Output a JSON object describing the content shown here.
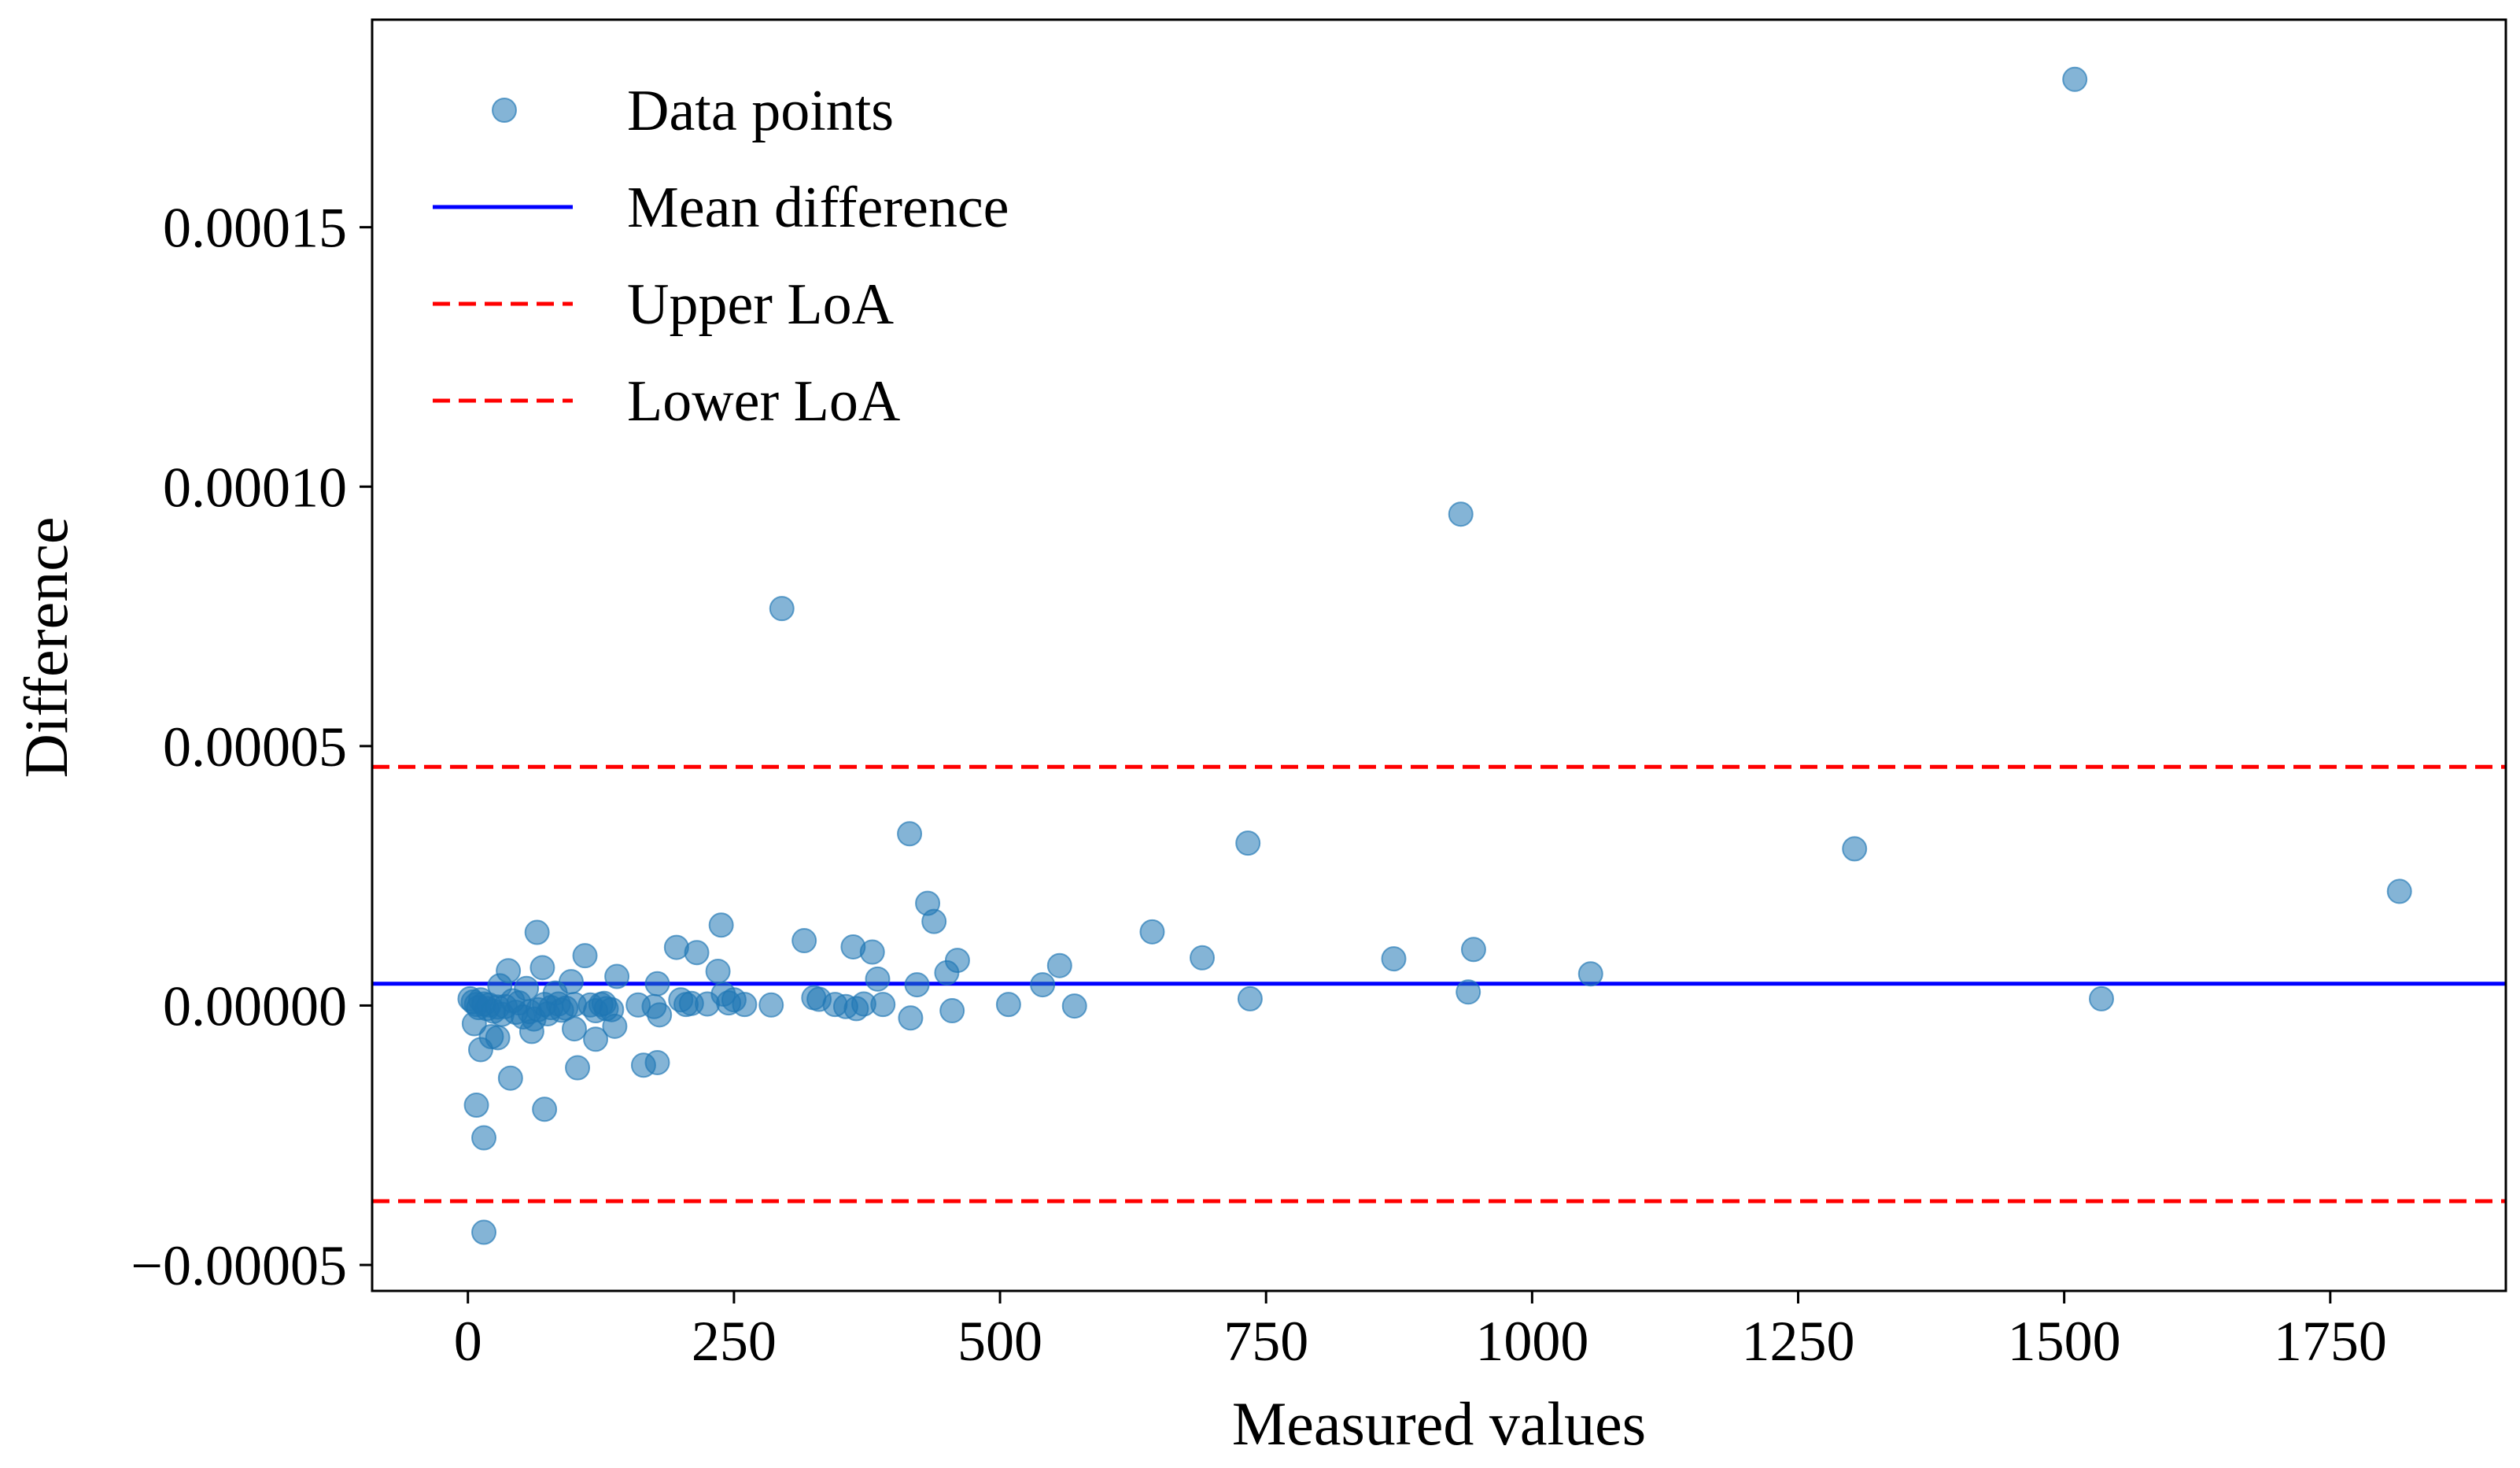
{
  "chart_data": {
    "type": "scatter",
    "xlabel": "Measured values",
    "ylabel": "Difference",
    "xlim": [
      -90,
      1915
    ],
    "ylim": [
      -5.5e-05,
      0.00019
    ],
    "x_ticks": [
      {
        "value": 0,
        "label": "0"
      },
      {
        "value": 250,
        "label": "250"
      },
      {
        "value": 500,
        "label": "500"
      },
      {
        "value": 750,
        "label": "750"
      },
      {
        "value": 1000,
        "label": "1000"
      },
      {
        "value": 1250,
        "label": "1250"
      },
      {
        "value": 1500,
        "label": "1500"
      },
      {
        "value": 1750,
        "label": "1750"
      }
    ],
    "y_ticks": [
      {
        "value": -5e-05,
        "label": "−0.00005"
      },
      {
        "value": 0.0,
        "label": "0.00000"
      },
      {
        "value": 5e-05,
        "label": "0.00005"
      },
      {
        "value": 0.0001,
        "label": "0.00010"
      },
      {
        "value": 0.00015,
        "label": "0.00015"
      }
    ],
    "legend": {
      "position": "upper-left",
      "entries": [
        {
          "label": "Data points",
          "kind": "marker",
          "color": "#1f77b4"
        },
        {
          "label": "Mean difference",
          "kind": "solid",
          "color": "#0000ff"
        },
        {
          "label": "Upper LoA",
          "kind": "dashed",
          "color": "#ff0000"
        },
        {
          "label": "Lower LoA",
          "kind": "dashed",
          "color": "#ff0000"
        }
      ]
    },
    "lines": [
      {
        "name": "Mean difference",
        "y": 4.2e-06,
        "color": "#0000ff",
        "style": "solid"
      },
      {
        "name": "Upper LoA",
        "y": 4.6e-05,
        "color": "#ff0000",
        "style": "dashed"
      },
      {
        "name": "Lower LoA",
        "y": -3.77e-05,
        "color": "#ff0000",
        "style": "dashed"
      }
    ],
    "series": [
      {
        "name": "Data points",
        "color": "#1f77b4",
        "alpha": 0.55,
        "points": [
          [
            1510,
            0.0001785
          ],
          [
            933,
            9.47e-05
          ],
          [
            295,
            7.65e-05
          ],
          [
            415,
            3.31e-05
          ],
          [
            733,
            3.13e-05
          ],
          [
            1303,
            3.02e-05
          ],
          [
            1815,
            2.2e-05
          ],
          [
            432,
            1.97e-05
          ],
          [
            438,
            1.62e-05
          ],
          [
            238,
            1.55e-05
          ],
          [
            65,
            1.41e-05
          ],
          [
            643,
            1.42e-05
          ],
          [
            316,
            1.25e-05
          ],
          [
            196,
            1.12e-05
          ],
          [
            362,
            1.13e-05
          ],
          [
            945,
            1.08e-05
          ],
          [
            215,
            1.02e-05
          ],
          [
            380,
            1.03e-05
          ],
          [
            110,
            9.6e-06
          ],
          [
            690,
            9.2e-06
          ],
          [
            870,
            9e-06
          ],
          [
            460,
            8.7e-06
          ],
          [
            556,
            7.7e-06
          ],
          [
            70,
            7.3e-06
          ],
          [
            38,
            6.7e-06
          ],
          [
            235,
            6.6e-06
          ],
          [
            450,
            6.3e-06
          ],
          [
            1055,
            6.1e-06
          ],
          [
            140,
            5.6e-06
          ],
          [
            385,
            5.1e-06
          ],
          [
            97,
            4.6e-06
          ],
          [
            178,
            4.2e-06
          ],
          [
            540,
            4e-06
          ],
          [
            422,
            4e-06
          ],
          [
            30,
            3.8e-06
          ],
          [
            55,
            3.3e-06
          ],
          [
            940,
            2.6e-06
          ],
          [
            82,
            2.4e-06
          ],
          [
            240,
            2.2e-06
          ],
          [
            325,
            1.5e-06
          ],
          [
            330,
            1.2e-06
          ],
          [
            735,
            1.3e-06
          ],
          [
            1535,
            1.3e-06
          ],
          [
            250,
            1.1e-06
          ],
          [
            200,
            1.1e-06
          ],
          [
            245,
            5e-07
          ],
          [
            285,
            1e-07
          ],
          [
            345,
            2e-07
          ],
          [
            372,
            3e-07
          ],
          [
            390,
            2e-07
          ],
          [
            508,
            2e-07
          ],
          [
            570,
            -1e-07
          ],
          [
            355,
            -2e-07
          ],
          [
            365,
            -6e-07
          ],
          [
            455,
            -1e-06
          ],
          [
            416,
            -2.4e-06
          ],
          [
            2,
            1.3e-06
          ],
          [
            5,
            7e-07
          ],
          [
            8,
            2e-07
          ],
          [
            10,
            -4e-07
          ],
          [
            12,
            1.1e-06
          ],
          [
            15,
            3e-07
          ],
          [
            18,
            -6e-07
          ],
          [
            20,
            1e-07
          ],
          [
            24,
            -1.1e-06
          ],
          [
            28,
            -3e-07
          ],
          [
            32,
            -1.7e-06
          ],
          [
            35,
            -2e-07
          ],
          [
            42,
            9e-07
          ],
          [
            45,
            -1.3e-06
          ],
          [
            48,
            5e-07
          ],
          [
            52,
            -2.2e-06
          ],
          [
            58,
            -1.2e-06
          ],
          [
            62,
            -2.6e-06
          ],
          [
            66,
            -8e-07
          ],
          [
            72,
            2e-07
          ],
          [
            75,
            -1.6e-06
          ],
          [
            78,
            -4e-07
          ],
          [
            85,
            3e-07
          ],
          [
            88,
            -9e-07
          ],
          [
            92,
            -5e-07
          ],
          [
            100,
            2e-07
          ],
          [
            115,
            1e-07
          ],
          [
            120,
            -1e-06
          ],
          [
            125,
            2e-07
          ],
          [
            130,
            -6e-07
          ],
          [
            135,
            -8e-07
          ],
          [
            160,
            1e-07
          ],
          [
            175,
            -2e-07
          ],
          [
            180,
            -1.8e-06
          ],
          [
            205,
            2e-07
          ],
          [
            210,
            4e-07
          ],
          [
            225,
            3e-07
          ],
          [
            260,
            2e-07
          ],
          [
            128,
            4e-07
          ],
          [
            6,
            -3.5e-06
          ],
          [
            22,
            -6e-06
          ],
          [
            28,
            -6.2e-06
          ],
          [
            12,
            -8.5e-06
          ],
          [
            60,
            -5e-06
          ],
          [
            100,
            -4.5e-06
          ],
          [
            120,
            -6.5e-06
          ],
          [
            165,
            -1.15e-05
          ],
          [
            138,
            -4e-06
          ],
          [
            178,
            -1.1e-05
          ],
          [
            40,
            -1.4e-05
          ],
          [
            103,
            -1.2e-05
          ],
          [
            8,
            -1.92e-05
          ],
          [
            72,
            -2e-05
          ],
          [
            15,
            -2.55e-05
          ],
          [
            15,
            -4.37e-05
          ]
        ]
      }
    ]
  }
}
